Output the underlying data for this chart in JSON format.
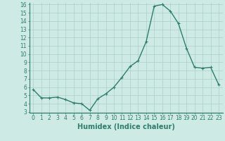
{
  "x": [
    0,
    1,
    2,
    3,
    4,
    5,
    6,
    7,
    8,
    9,
    10,
    11,
    12,
    13,
    14,
    15,
    16,
    17,
    18,
    19,
    20,
    21,
    22,
    23
  ],
  "y": [
    5.7,
    4.7,
    4.7,
    4.8,
    4.5,
    4.1,
    4.0,
    3.2,
    4.6,
    5.2,
    6.0,
    7.2,
    8.5,
    9.2,
    11.5,
    15.8,
    16.0,
    15.2,
    13.7,
    10.7,
    8.4,
    8.3,
    8.4,
    6.3
  ],
  "line_color": "#2e7d6e",
  "marker": "+",
  "marker_size": 3,
  "linewidth": 1.0,
  "bg_color": "#ceeae4",
  "grid_color": "#aacfc8",
  "xlabel": "Humidex (Indice chaleur)",
  "xlabel_fontsize": 7,
  "tick_fontsize": 5.5,
  "ylim": [
    3,
    16
  ],
  "yticks": [
    3,
    4,
    5,
    6,
    7,
    8,
    9,
    10,
    11,
    12,
    13,
    14,
    15,
    16
  ],
  "xticks": [
    0,
    1,
    2,
    3,
    4,
    5,
    6,
    7,
    8,
    9,
    10,
    11,
    12,
    13,
    14,
    15,
    16,
    17,
    18,
    19,
    20,
    21,
    22,
    23
  ],
  "xlim": [
    -0.5,
    23.5
  ]
}
